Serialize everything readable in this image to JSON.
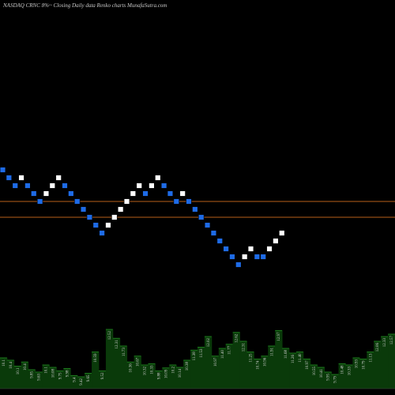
{
  "chart_data": {
    "type": "renko",
    "title": "NASDAQ CRNC 8%~  Closing Daily data  Renko  charts MunafaSutra.com",
    "bricks": [
      {
        "d": "down",
        "v": 12.8
      },
      {
        "d": "down",
        "v": 12.5
      },
      {
        "d": "down",
        "v": 12.2
      },
      {
        "d": "up",
        "v": 12.5
      },
      {
        "d": "down",
        "v": 12.2
      },
      {
        "d": "down",
        "v": 11.9
      },
      {
        "d": "down",
        "v": 11.6
      },
      {
        "d": "up",
        "v": 11.9
      },
      {
        "d": "up",
        "v": 12.2
      },
      {
        "d": "up",
        "v": 12.5
      },
      {
        "d": "down",
        "v": 12.2
      },
      {
        "d": "down",
        "v": 11.9
      },
      {
        "d": "down",
        "v": 11.6
      },
      {
        "d": "down",
        "v": 11.3
      },
      {
        "d": "down",
        "v": 11.0
      },
      {
        "d": "down",
        "v": 10.7
      },
      {
        "d": "down",
        "v": 10.4
      },
      {
        "d": "up",
        "v": 10.7
      },
      {
        "d": "up",
        "v": 11.0
      },
      {
        "d": "up",
        "v": 11.3
      },
      {
        "d": "up",
        "v": 11.6
      },
      {
        "d": "up",
        "v": 11.9
      },
      {
        "d": "up",
        "v": 12.2
      },
      {
        "d": "down",
        "v": 11.9
      },
      {
        "d": "up",
        "v": 12.2
      },
      {
        "d": "up",
        "v": 12.5
      },
      {
        "d": "down",
        "v": 12.2
      },
      {
        "d": "down",
        "v": 11.9
      },
      {
        "d": "down",
        "v": 11.6
      },
      {
        "d": "up",
        "v": 11.9
      },
      {
        "d": "down",
        "v": 11.6
      },
      {
        "d": "down",
        "v": 11.3
      },
      {
        "d": "down",
        "v": 11.0
      },
      {
        "d": "down",
        "v": 10.7
      },
      {
        "d": "down",
        "v": 10.4
      },
      {
        "d": "down",
        "v": 10.1
      },
      {
        "d": "down",
        "v": 9.8
      },
      {
        "d": "down",
        "v": 9.5
      },
      {
        "d": "down",
        "v": 9.2
      },
      {
        "d": "up",
        "v": 9.5
      },
      {
        "d": "up",
        "v": 9.8
      },
      {
        "d": "down",
        "v": 9.5
      },
      {
        "d": "down",
        "v": 9.5
      },
      {
        "d": "up",
        "v": 9.8
      },
      {
        "d": "up",
        "v": 10.1
      },
      {
        "d": "up",
        "v": 10.4
      }
    ],
    "reference_lines": [
      11.6,
      11.0
    ],
    "volume_labels": [
      "10.1",
      "10.4",
      "10.1",
      "10.4",
      "9.85",
      "9.63",
      "10.1",
      "10.08",
      "9.75",
      "9.98",
      "9.4",
      "9.42",
      "9.65",
      "10.59",
      "9.52",
      "12.52",
      "12.31",
      "11.73",
      "10.36",
      "10.67",
      "10.32",
      "10.33",
      "9.88",
      "10.09",
      "10.2",
      "10.14",
      "10.38",
      "11.38",
      "11.53",
      "12.02",
      "10.97",
      "11.40",
      "11.77",
      "12.62",
      "12.31",
      "11.25",
      "10.74",
      "10.96",
      "11.91",
      "12.97",
      "11.68",
      "11.26",
      "11.40",
      "10.97",
      "10.55",
      "10.41",
      "9.95",
      "9.79",
      "10.48",
      "10.33",
      "10.93",
      "10.79",
      "11.13",
      "12.06",
      "12.33",
      "12.57"
    ],
    "volumes": [
      0.52,
      0.48,
      0.38,
      0.45,
      0.32,
      0.28,
      0.4,
      0.36,
      0.3,
      0.34,
      0.22,
      0.2,
      0.26,
      0.62,
      0.3,
      1.0,
      0.85,
      0.72,
      0.45,
      0.55,
      0.4,
      0.42,
      0.3,
      0.35,
      0.4,
      0.36,
      0.48,
      0.65,
      0.7,
      0.88,
      0.55,
      0.68,
      0.75,
      0.95,
      0.8,
      0.62,
      0.5,
      0.55,
      0.72,
      0.98,
      0.68,
      0.6,
      0.62,
      0.5,
      0.4,
      0.36,
      0.28,
      0.24,
      0.42,
      0.4,
      0.52,
      0.5,
      0.62,
      0.8,
      0.88,
      0.92
    ]
  }
}
